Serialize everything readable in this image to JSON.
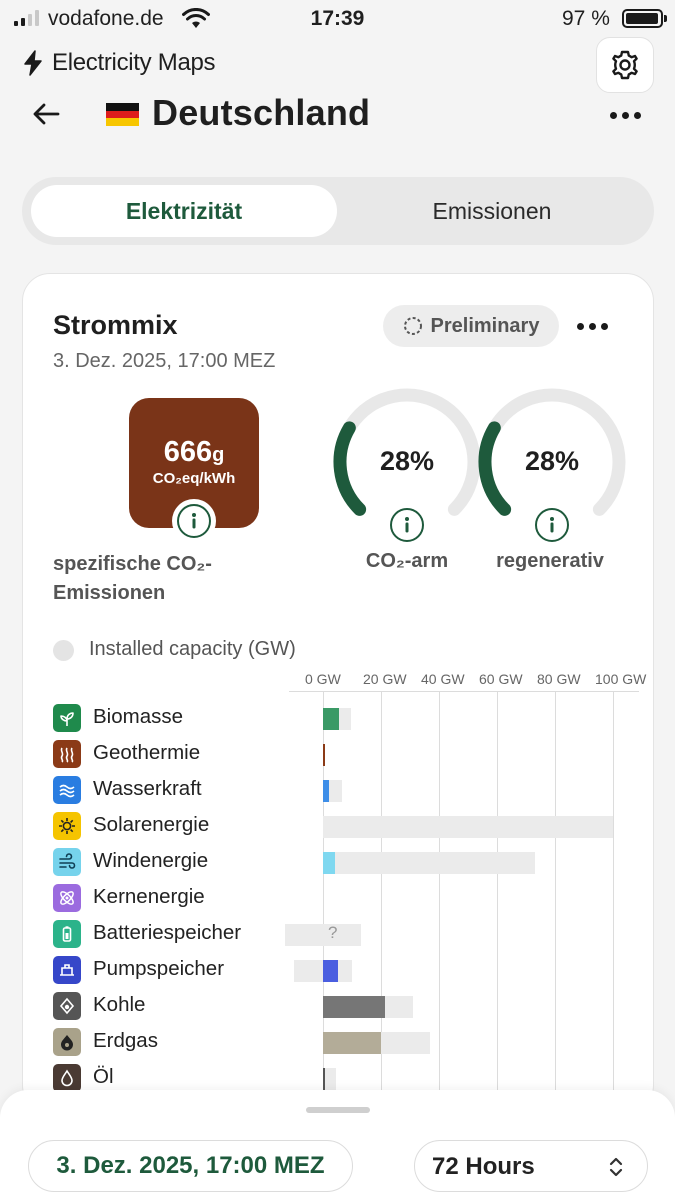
{
  "status_bar": {
    "carrier": "vodafone.de",
    "time": "17:39",
    "battery": "97 %",
    "battery_level": 0.97
  },
  "header": {
    "app_name": "Electricity Maps",
    "country": "Deutschland"
  },
  "tabs": [
    {
      "label": "Elektrizität",
      "active": true
    },
    {
      "label": "Emissionen",
      "active": false
    }
  ],
  "card": {
    "title": "Strommix",
    "date": "3. Dez. 2025, 17:00 MEZ",
    "badge": "Preliminary",
    "co2": {
      "value": "666",
      "unit": "g",
      "sub_unit": "CO₂eq/kWh",
      "label": "spezifische CO₂-Emissionen",
      "color": "#7a3418"
    },
    "low_carbon": {
      "value": "28%",
      "fraction": 0.28,
      "label": "CO₂-arm"
    },
    "renewable": {
      "value": "28%",
      "fraction": 0.28,
      "label": "regenerativ"
    },
    "legend": "Installed capacity (GW)",
    "axis_ticks": [
      "0 GW",
      "20 GW",
      "40 GW",
      "60 GW",
      "80 GW",
      "100 GW"
    ],
    "sources": [
      {
        "label": "Biomasse",
        "icon": "leaf-icon",
        "icon_color": "#1f8a4c",
        "production_gw": 5.5,
        "capacity_gw": 9.5,
        "bar_color": "#3a9a66"
      },
      {
        "label": "Geothermie",
        "icon": "heat-waves-icon",
        "icon_color": "#8b3a17",
        "production_gw": 0.2,
        "capacity_gw": 0.2,
        "bar_color": "#8b3a17"
      },
      {
        "label": "Wasserkraft",
        "icon": "water-waves-icon",
        "icon_color": "#2a7de1",
        "production_gw": 2.0,
        "capacity_gw": 6.5,
        "bar_color": "#3e8ee8"
      },
      {
        "label": "Solarenergie",
        "icon": "sun-icon",
        "icon_color": "#f5c400",
        "production_gw": 0,
        "capacity_gw": 100,
        "bar_color": "#f5c400"
      },
      {
        "label": "Windenergie",
        "icon": "wind-icon",
        "icon_color": "#76d3ec",
        "production_gw": 4.0,
        "capacity_gw": 73,
        "bar_color": "#7fd8f0"
      },
      {
        "label": "Kernenergie",
        "icon": "atom-icon",
        "icon_color": "#9b6bdf",
        "production_gw": 0,
        "capacity_gw": 0,
        "bar_color": "#9b6bdf"
      },
      {
        "label": "Batteriespeicher",
        "icon": "battery-icon",
        "icon_color": "#2bb38a",
        "production_gw": 0,
        "capacity_gw": 13,
        "bar_color": "#2bb38a",
        "unknown": true,
        "neg_capacity_gw": -13,
        "unknown_mark": "?"
      },
      {
        "label": "Pumpspeicher",
        "icon": "pumped-storage-icon",
        "icon_color": "#3647c9",
        "production_gw": 5.0,
        "capacity_gw": 10,
        "bar_color": "#4a5ee0",
        "neg_capacity_gw": -10
      },
      {
        "label": "Kohle",
        "icon": "coal-icon",
        "icon_color": "#555555",
        "production_gw": 21.5,
        "capacity_gw": 31,
        "bar_color": "#767676"
      },
      {
        "label": "Erdgas",
        "icon": "gas-flame-icon",
        "icon_color": "#a9a28a",
        "production_gw": 20,
        "capacity_gw": 37,
        "bar_color": "#b3ac98"
      },
      {
        "label": "Öl",
        "icon": "oil-drop-icon",
        "icon_color": "#4a3a33",
        "production_gw": 0.5,
        "capacity_gw": 4.5,
        "bar_color": "#555555"
      }
    ]
  },
  "bottom": {
    "date": "3. Dez. 2025, 17:00 MEZ",
    "range": "72 Hours"
  }
}
